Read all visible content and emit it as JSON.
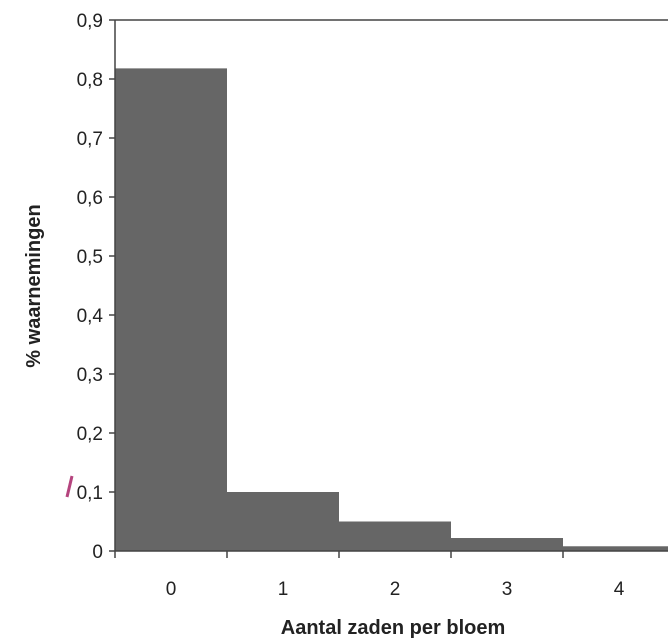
{
  "chart_data": {
    "type": "bar",
    "title": "",
    "xlabel": "Aantal zaden per bloem",
    "ylabel": "% waarnemingen",
    "categories": [
      "0",
      "1",
      "2",
      "3",
      "4"
    ],
    "values": [
      0.818,
      0.1,
      0.05,
      0.022,
      0.008
    ],
    "ylim": [
      0,
      0.9
    ],
    "y_ticks": [
      "0",
      "0,1",
      "0,2",
      "0,3",
      "0,4",
      "0,5",
      "0,6",
      "0,7",
      "0,8",
      "0,9"
    ],
    "grid": false,
    "legend": "none",
    "bar_color": "#666666",
    "accent_stroke_color": "#b5447e"
  }
}
